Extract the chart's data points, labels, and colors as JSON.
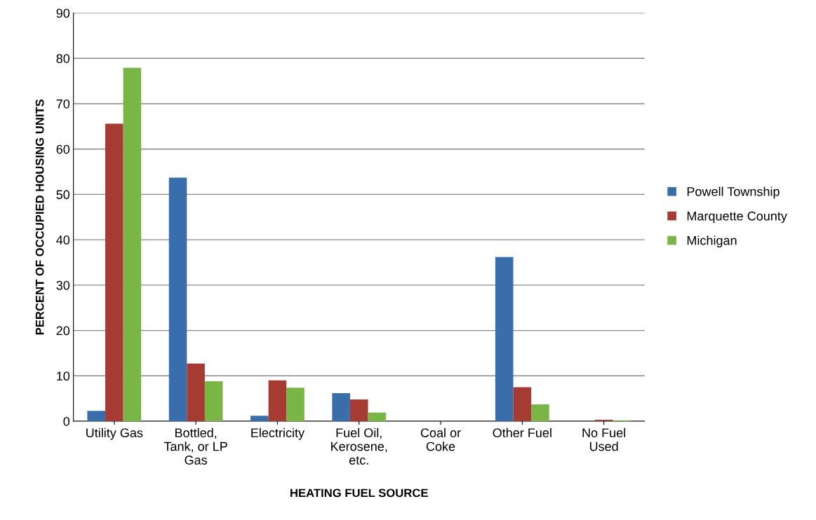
{
  "chart_data": {
    "type": "bar",
    "xlabel": "HEATING FUEL SOURCE",
    "ylabel": "PERCENT OF OCCUPIED HOUSING UNITS",
    "categories": [
      "Utility Gas",
      "Bottled,\nTank, or LP\nGas",
      "Electricity",
      "Fuel Oil,\nKerosene,\netc.",
      "Coal or\nCoke",
      "Other Fuel",
      "No Fuel\nUsed"
    ],
    "series": [
      {
        "name": "Powell Township",
        "color": "#3a6eaa",
        "values": [
          2.3,
          53.7,
          1.2,
          6.2,
          0,
          36.2,
          0
        ]
      },
      {
        "name": "Marquette County",
        "color": "#a63b33",
        "values": [
          65.6,
          12.7,
          9.0,
          4.8,
          0,
          7.5,
          0.3
        ]
      },
      {
        "name": "Michigan",
        "color": "#79b645",
        "values": [
          77.9,
          8.8,
          7.4,
          1.9,
          0,
          3.7,
          0.2
        ]
      }
    ],
    "ylim": [
      0,
      90
    ],
    "yticks": [
      0,
      10,
      20,
      30,
      40,
      50,
      60,
      70,
      80,
      90
    ],
    "grid": "y",
    "legend": "right"
  }
}
